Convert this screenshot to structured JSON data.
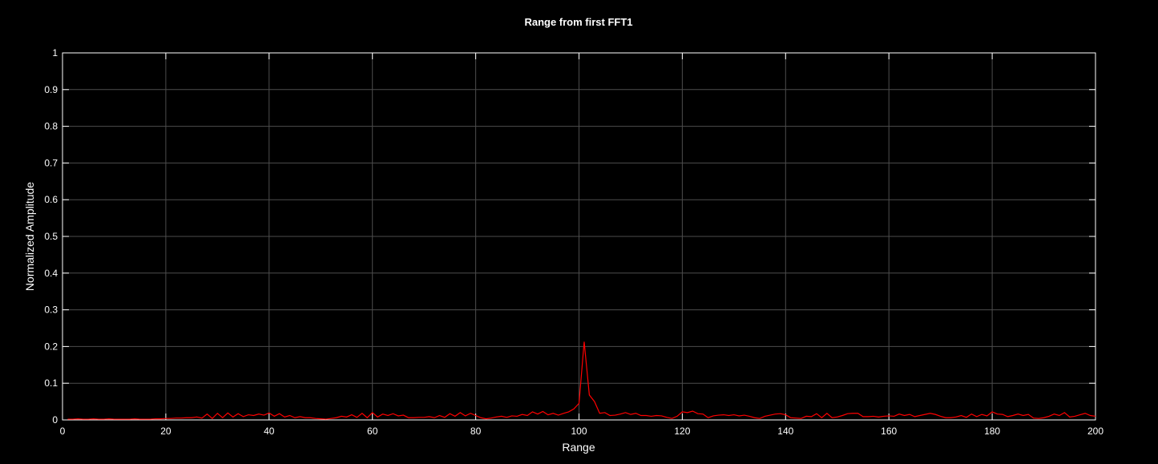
{
  "chart_data": {
    "type": "line",
    "title": "Range from first FFT1",
    "xlabel": "Range",
    "ylabel": "Normalized Amplitude",
    "xlim": [
      0,
      200
    ],
    "ylim": [
      0,
      1
    ],
    "x_ticks": [
      0,
      20,
      40,
      60,
      80,
      100,
      120,
      140,
      160,
      180,
      200
    ],
    "y_ticks": [
      0,
      0.1,
      0.2,
      0.3,
      0.4,
      0.5,
      0.6,
      0.7,
      0.8,
      0.9,
      1
    ],
    "grid": true,
    "colors": {
      "background": "#000000",
      "axes": "#ffffff",
      "grid": "#4d4d4d",
      "line": "#ff0000"
    },
    "series": [
      {
        "x": [
          1,
          2,
          3,
          4,
          5,
          6,
          7,
          8,
          9,
          10,
          11,
          12,
          13,
          14,
          15,
          16,
          17,
          18,
          19,
          20,
          21,
          22,
          23,
          24,
          25,
          26,
          27,
          28,
          29,
          30,
          31,
          32,
          33,
          34,
          35,
          36,
          37,
          38,
          39,
          40,
          41,
          42,
          43,
          44,
          45,
          46,
          47,
          48,
          49,
          50,
          51,
          52,
          53,
          54,
          55,
          56,
          57,
          58,
          59,
          60,
          61,
          62,
          63,
          64,
          65,
          66,
          67,
          68,
          69,
          70,
          71,
          72,
          73,
          74,
          75,
          76,
          77,
          78,
          79,
          80,
          81,
          82,
          83,
          84,
          85,
          86,
          87,
          88,
          89,
          90,
          91,
          92,
          93,
          94,
          95,
          96,
          97,
          98,
          99,
          100,
          101,
          102,
          103,
          104,
          105,
          106,
          107,
          108,
          109,
          110,
          111,
          112,
          113,
          114,
          115,
          116,
          117,
          118,
          119,
          120,
          121,
          122,
          123,
          124,
          125,
          126,
          127,
          128,
          129,
          130,
          131,
          132,
          133,
          134,
          135,
          136,
          137,
          138,
          139,
          140,
          141,
          142,
          143,
          144,
          145,
          146,
          147,
          148,
          149,
          150,
          151,
          152,
          153,
          154,
          155,
          156,
          157,
          158,
          159,
          160,
          161,
          162,
          163,
          164,
          165,
          166,
          167,
          168,
          169,
          170,
          171,
          172,
          173,
          174,
          175,
          176,
          177,
          178,
          179,
          180,
          181,
          182,
          183,
          184,
          185,
          186,
          187,
          188,
          189,
          190,
          191,
          192,
          193,
          194,
          195,
          196,
          197,
          198,
          199,
          200
        ],
        "y": [
          0.002,
          0.002,
          0.003,
          0.002,
          0.002,
          0.003,
          0.002,
          0.002,
          0.003,
          0.002,
          0.002,
          0.002,
          0.002,
          0.003,
          0.002,
          0.002,
          0.002,
          0.003,
          0.003,
          0.004,
          0.004,
          0.005,
          0.005,
          0.006,
          0.006,
          0.008,
          0.005,
          0.016,
          0.004,
          0.018,
          0.006,
          0.019,
          0.008,
          0.017,
          0.009,
          0.014,
          0.012,
          0.016,
          0.013,
          0.019,
          0.01,
          0.017,
          0.008,
          0.012,
          0.006,
          0.009,
          0.006,
          0.006,
          0.004,
          0.003,
          0.002,
          0.004,
          0.006,
          0.01,
          0.008,
          0.014,
          0.007,
          0.018,
          0.006,
          0.02,
          0.008,
          0.016,
          0.012,
          0.017,
          0.011,
          0.013,
          0.006,
          0.006,
          0.007,
          0.007,
          0.009,
          0.006,
          0.012,
          0.007,
          0.017,
          0.01,
          0.02,
          0.011,
          0.018,
          0.012,
          0.006,
          0.003,
          0.005,
          0.008,
          0.01,
          0.007,
          0.011,
          0.01,
          0.015,
          0.012,
          0.022,
          0.016,
          0.023,
          0.014,
          0.018,
          0.013,
          0.018,
          0.022,
          0.03,
          0.045,
          0.213,
          0.068,
          0.05,
          0.018,
          0.02,
          0.012,
          0.013,
          0.016,
          0.02,
          0.015,
          0.018,
          0.012,
          0.012,
          0.01,
          0.012,
          0.011,
          0.007,
          0.004,
          0.01,
          0.022,
          0.02,
          0.024,
          0.017,
          0.016,
          0.006,
          0.011,
          0.013,
          0.014,
          0.012,
          0.014,
          0.011,
          0.013,
          0.01,
          0.006,
          0.004,
          0.01,
          0.013,
          0.016,
          0.017,
          0.014,
          0.006,
          0.005,
          0.004,
          0.01,
          0.009,
          0.017,
          0.006,
          0.018,
          0.006,
          0.008,
          0.012,
          0.017,
          0.018,
          0.018,
          0.009,
          0.009,
          0.01,
          0.008,
          0.01,
          0.011,
          0.01,
          0.016,
          0.012,
          0.015,
          0.009,
          0.012,
          0.015,
          0.018,
          0.015,
          0.01,
          0.006,
          0.006,
          0.008,
          0.012,
          0.007,
          0.016,
          0.009,
          0.015,
          0.011,
          0.022,
          0.016,
          0.015,
          0.009,
          0.012,
          0.016,
          0.012,
          0.015,
          0.005,
          0.004,
          0.006,
          0.01,
          0.016,
          0.012,
          0.02,
          0.008,
          0.01,
          0.014,
          0.018,
          0.012,
          0.01
        ]
      }
    ]
  }
}
